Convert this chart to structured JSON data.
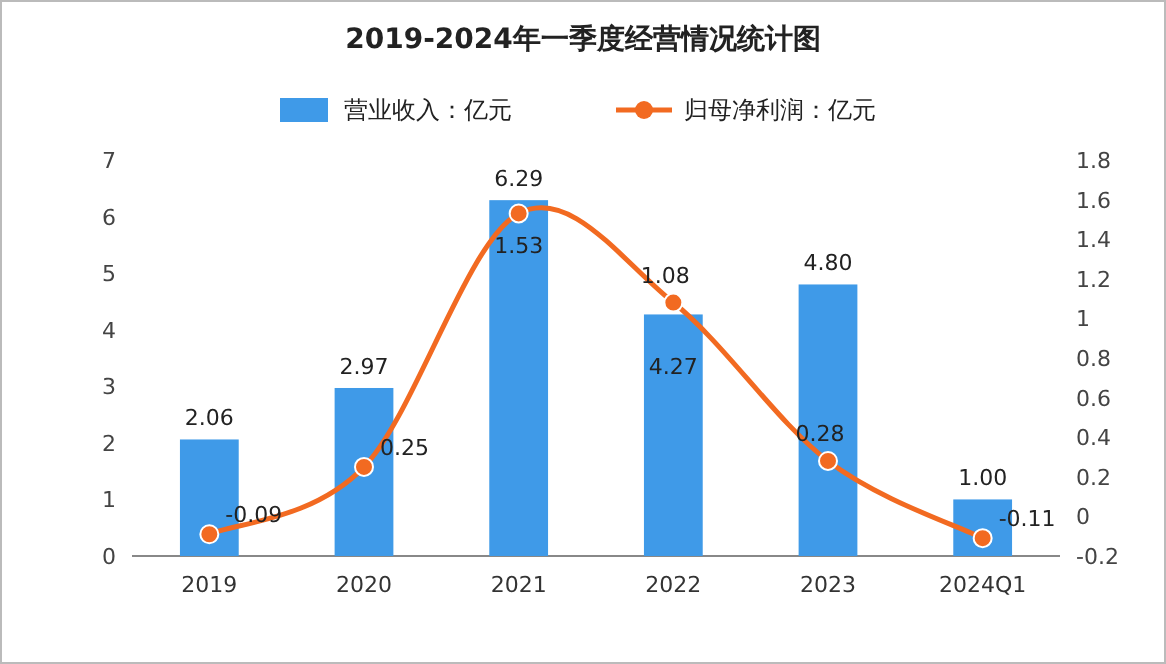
{
  "chart_data": {
    "type": "bar",
    "title": "2019-2024年一季度经营情况统计图",
    "categories": [
      "2019",
      "2020",
      "2021",
      "2022",
      "2023",
      "2024Q1"
    ],
    "series": [
      {
        "name": "营业收入：亿元",
        "type": "bar",
        "color": "#3f9ae8",
        "values": [
          2.06,
          2.97,
          6.29,
          4.27,
          4.8,
          1.0
        ],
        "value_labels": [
          "2.06",
          "2.97",
          "6.29",
          "4.27",
          "4.80",
          "1.00"
        ]
      },
      {
        "name": "归母净利润：亿元",
        "type": "line",
        "axis": "y2",
        "color": "#f26a21",
        "marker": "circle",
        "values": [
          -0.09,
          0.25,
          1.53,
          1.08,
          0.28,
          -0.11
        ],
        "value_labels": [
          "-0.09",
          "0.25",
          "1.53",
          "1.08",
          "0.28",
          "-0.11"
        ]
      }
    ],
    "ylim": [
      0,
      7
    ],
    "yticks": [
      0,
      1,
      2,
      3,
      4,
      5,
      6,
      7
    ],
    "y2lim": [
      -0.2,
      1.8
    ],
    "y2ticks": [
      -0.2,
      0,
      0.2,
      0.4,
      0.6,
      0.8,
      1,
      1.2,
      1.4,
      1.6,
      1.8
    ],
    "legend": "top",
    "grid": false
  }
}
